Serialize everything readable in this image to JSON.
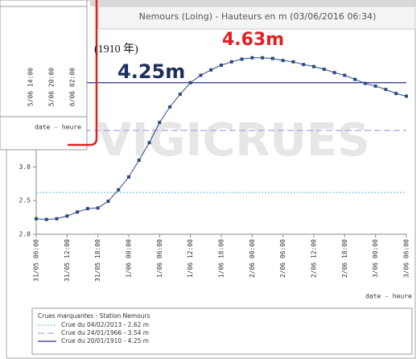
{
  "chart_data": {
    "type": "line",
    "title": "Nemours (Loing) - Hauteurs en m (03/06/2016 06:34)",
    "x_label": "date - heure",
    "watermark": "VIGICRUES",
    "categories": [
      "31/05 06:00",
      null,
      null,
      "31/05 12:00",
      null,
      null,
      "31/05 18:00",
      null,
      null,
      "1/06 00:00",
      null,
      null,
      "1/06 06:00",
      null,
      null,
      "1/06 12:00",
      null,
      null,
      "1/06 18:00",
      null,
      null,
      "2/06 00:00",
      null,
      null,
      "2/06 06:00",
      null,
      null,
      "2/06 12:00",
      null,
      null,
      "2/06 18:00",
      null,
      null,
      "3/06 00:00",
      null,
      null,
      "3/06 06:00"
    ],
    "values": [
      2.23,
      2.22,
      2.23,
      2.27,
      2.33,
      2.38,
      2.39,
      2.49,
      2.66,
      2.85,
      3.1,
      3.36,
      3.66,
      3.89,
      4.08,
      4.25,
      4.36,
      4.44,
      4.51,
      4.56,
      4.6,
      4.62,
      4.62,
      4.61,
      4.58,
      4.56,
      4.52,
      4.49,
      4.45,
      4.4,
      4.36,
      4.3,
      4.24,
      4.2,
      4.15,
      4.09,
      4.05
    ],
    "color": "#2b4a80",
    "ylim": [
      2,
      5
    ],
    "yticks": [
      {
        "value": 2,
        "label": "2.0"
      },
      {
        "value": 2.5,
        "label": "2.5"
      },
      {
        "value": 3,
        "label": "3.0"
      }
    ],
    "legend_title": "Crues marquantes - Station Nemours",
    "reference_lines": [
      {
        "label": "Crue du 04/02/2013 - 2.62 m",
        "value": 2.62,
        "color": "#7fc4e8",
        "style": "dotted"
      },
      {
        "label": "Crue du 24/01/1966 - 3.54 m",
        "value": 3.54,
        "color": "#a9a6e6",
        "style": "dashed"
      },
      {
        "label": "Crue du 20/01/1910 - 4.25 m",
        "value": 4.25,
        "color": "#2d2d8c",
        "style": "solid"
      }
    ],
    "annotations": [
      "4.63m",
      "(1910 年)",
      "4.25m"
    ],
    "inset": {
      "xticks": [
        "5/06 14:00",
        "5/06 20:00",
        "6/06 02:00"
      ],
      "x_label": "date - heure"
    }
  }
}
